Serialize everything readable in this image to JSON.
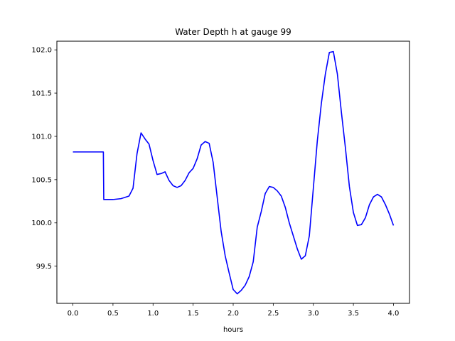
{
  "chart_data": {
    "type": "line",
    "title": "Water Depth h at gauge 99",
    "xlabel": "hours",
    "ylabel": "",
    "xlim": [
      -0.2,
      4.2
    ],
    "ylim": [
      99.07,
      102.1
    ],
    "xticks": [
      0.0,
      0.5,
      1.0,
      1.5,
      2.0,
      2.5,
      3.0,
      3.5,
      4.0
    ],
    "xtick_labels": [
      "0.0",
      "0.5",
      "1.0",
      "1.5",
      "2.0",
      "2.5",
      "3.0",
      "3.5",
      "4.0"
    ],
    "yticks": [
      99.5,
      100.0,
      100.5,
      101.0,
      101.5,
      102.0
    ],
    "ytick_labels": [
      "99.5",
      "100.0",
      "100.5",
      "101.0",
      "101.5",
      "102.0"
    ],
    "grid": false,
    "series": [
      {
        "color": "#0000ff",
        "x": [
          0.0,
          0.1,
          0.2,
          0.3,
          0.38,
          0.385,
          0.5,
          0.6,
          0.7,
          0.75,
          0.8,
          0.85,
          0.9,
          0.95,
          1.0,
          1.05,
          1.1,
          1.15,
          1.2,
          1.25,
          1.3,
          1.35,
          1.4,
          1.45,
          1.5,
          1.55,
          1.6,
          1.65,
          1.7,
          1.75,
          1.8,
          1.85,
          1.9,
          1.95,
          2.0,
          2.05,
          2.1,
          2.15,
          2.2,
          2.25,
          2.3,
          2.35,
          2.4,
          2.45,
          2.5,
          2.55,
          2.6,
          2.65,
          2.7,
          2.75,
          2.8,
          2.85,
          2.9,
          2.95,
          3.0,
          3.05,
          3.1,
          3.15,
          3.2,
          3.25,
          3.3,
          3.35,
          3.4,
          3.45,
          3.5,
          3.55,
          3.6,
          3.65,
          3.7,
          3.75,
          3.8,
          3.85,
          3.9,
          3.95,
          4.0
        ],
        "y": [
          100.82,
          100.82,
          100.82,
          100.82,
          100.82,
          100.27,
          100.27,
          100.28,
          100.31,
          100.4,
          100.8,
          101.04,
          100.97,
          100.91,
          100.72,
          100.56,
          100.57,
          100.59,
          100.49,
          100.43,
          100.41,
          100.43,
          100.49,
          100.58,
          100.63,
          100.74,
          100.9,
          100.94,
          100.92,
          100.7,
          100.3,
          99.9,
          99.62,
          99.42,
          99.23,
          99.18,
          99.22,
          99.28,
          99.38,
          99.55,
          99.95,
          100.13,
          100.34,
          100.42,
          100.41,
          100.37,
          100.31,
          100.18,
          100.0,
          99.85,
          99.7,
          99.58,
          99.62,
          99.85,
          100.4,
          100.95,
          101.38,
          101.72,
          101.97,
          101.98,
          101.72,
          101.28,
          100.87,
          100.42,
          100.12,
          99.97,
          99.98,
          100.06,
          100.21,
          100.3,
          100.33,
          100.3,
          100.21,
          100.1,
          99.97
        ]
      }
    ]
  }
}
